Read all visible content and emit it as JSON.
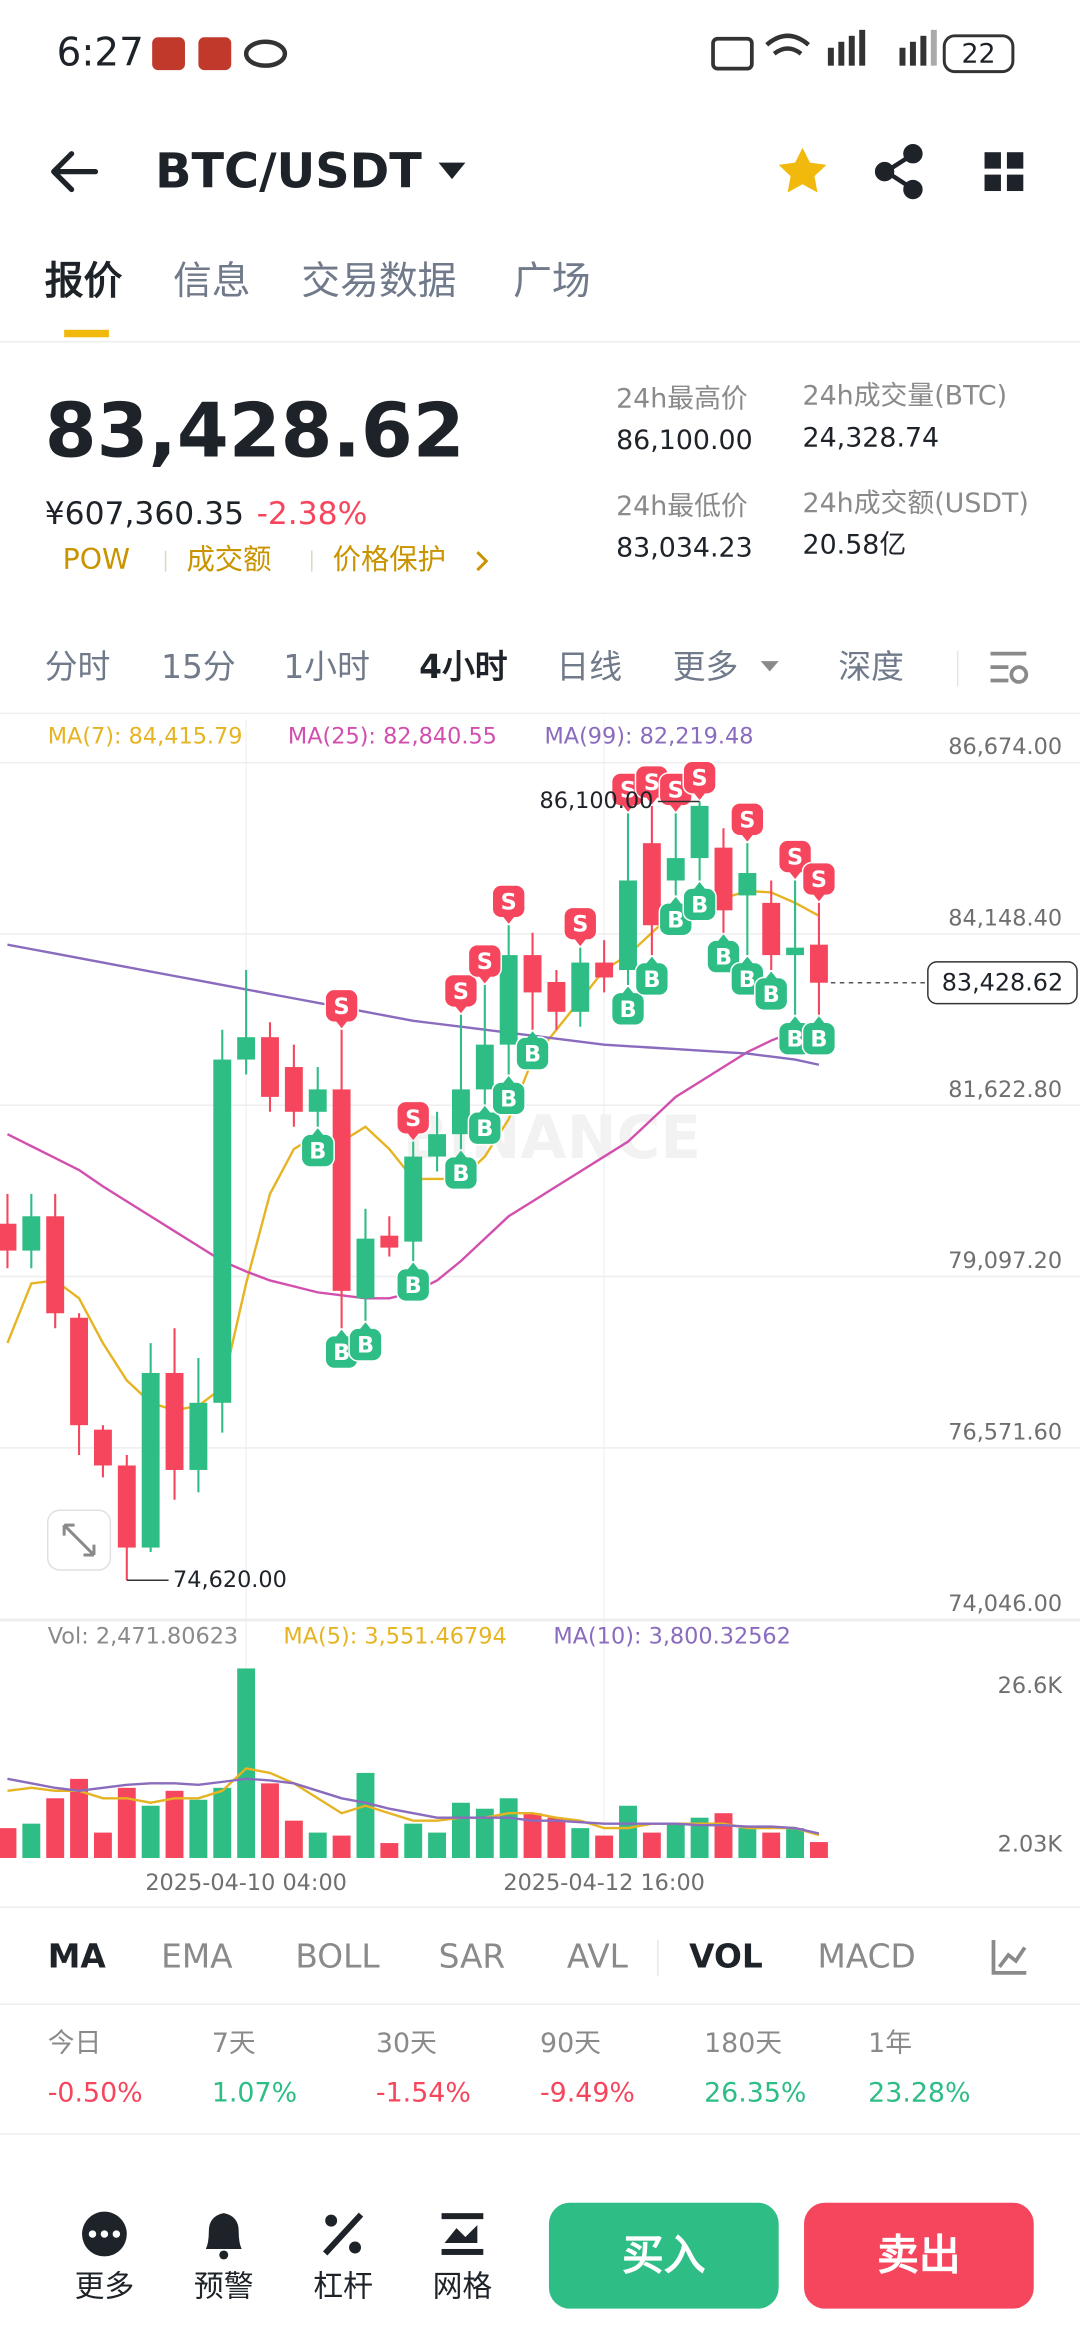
{
  "status_bar": {
    "time": "6:27",
    "battery": "22"
  },
  "header": {
    "title": "BTC/USDT"
  },
  "tabs": [
    "报价",
    "信息",
    "交易数据",
    "广场"
  ],
  "ticker": {
    "price": "83,428.62",
    "fiat": "¥607,360.35",
    "change": "-2.38%",
    "tags": [
      "POW",
      "成交额",
      "价格保护"
    ]
  },
  "stats": [
    {
      "label": "24h最高价",
      "value": "86,100.00"
    },
    {
      "label": "24h成交量(BTC)",
      "value": "24,328.74"
    },
    {
      "label": "24h最低价",
      "value": "83,034.23"
    },
    {
      "label": "24h成交额(USDT)",
      "value": "20.58亿"
    }
  ],
  "intervals": [
    "分时",
    "15分",
    "1小时",
    "4小时",
    "日线",
    "更多",
    "深度"
  ],
  "chart_data": {
    "type": "candlestick",
    "watermark": "BINANCE",
    "up_color": "#2ebd85",
    "down_color": "#f6465d",
    "categories": [
      null,
      null,
      null,
      null,
      null,
      null,
      null,
      null,
      null,
      null,
      "2025-04-10 04:00",
      null,
      null,
      null,
      null,
      null,
      null,
      null,
      null,
      null,
      null,
      null,
      null,
      null,
      null,
      "2025-04-12 16:00",
      null,
      null,
      null,
      null,
      null,
      null,
      null,
      null,
      null
    ],
    "candles": [
      {
        "open": 79876,
        "high": 80316,
        "low": 79220,
        "close": 79480
      },
      {
        "open": 79480,
        "high": 80316,
        "low": 79220,
        "close": 79986
      },
      {
        "open": 79986,
        "high": 80316,
        "low": 78336,
        "close": 78556
      },
      {
        "open": 78490,
        "high": 78556,
        "low": 76466,
        "close": 76906
      },
      {
        "open": 76840,
        "high": 76906,
        "low": 76136,
        "close": 76312
      },
      {
        "open": 76312,
        "high": 76466,
        "low": 74620,
        "close": 75102
      },
      {
        "open": 75102,
        "high": 78116,
        "low": 75036,
        "close": 77676
      },
      {
        "open": 77676,
        "high": 78336,
        "low": 75806,
        "close": 76246
      },
      {
        "open": 76246,
        "high": 77896,
        "low": 75916,
        "close": 77236
      },
      {
        "open": 77236,
        "high": 82736,
        "low": 76796,
        "close": 82296
      },
      {
        "open": 82296,
        "high": 83616,
        "low": 82076,
        "close": 82626
      },
      {
        "open": 82626,
        "high": 82846,
        "low": 81526,
        "close": 81746
      },
      {
        "open": 82186,
        "high": 82516,
        "low": 81306,
        "close": 81526
      },
      {
        "open": 81526,
        "high": 82186,
        "low": 81306,
        "close": 81856,
        "signals": [
          "B"
        ]
      },
      {
        "open": 81856,
        "high": 82736,
        "low": 78336,
        "close": 78886,
        "signals": [
          "S",
          "B"
        ]
      },
      {
        "open": 78776,
        "high": 80096,
        "low": 78446,
        "close": 79656,
        "signals": [
          "B"
        ]
      },
      {
        "open": 79700,
        "high": 79986,
        "low": 79392,
        "close": 79524
      },
      {
        "open": 79612,
        "high": 81086,
        "low": 79326,
        "close": 80866,
        "signals": [
          "S",
          "B"
        ]
      },
      {
        "open": 80866,
        "high": 81526,
        "low": 80646,
        "close": 81196
      },
      {
        "open": 81196,
        "high": 82956,
        "low": 80976,
        "close": 81856,
        "signals": [
          "S",
          "B"
        ]
      },
      {
        "open": 81856,
        "high": 83396,
        "low": 81636,
        "close": 82516,
        "signals": [
          "S",
          "B"
        ]
      },
      {
        "open": 82516,
        "high": 84276,
        "low": 82076,
        "close": 83836,
        "signals": [
          "S",
          "B"
        ]
      },
      {
        "open": 83836,
        "high": 84166,
        "low": 82736,
        "close": 83286,
        "signals": [
          "B"
        ]
      },
      {
        "open": 83440,
        "high": 83616,
        "low": 82736,
        "close": 83000
      },
      {
        "open": 83000,
        "high": 83946,
        "low": 82780,
        "close": 83726,
        "signals": [
          "S"
        ]
      },
      {
        "open": 83726,
        "high": 84056,
        "low": 83286,
        "close": 83506
      },
      {
        "open": 83616,
        "high": 85926,
        "low": 83396,
        "close": 84936,
        "signals": [
          "S",
          "B"
        ]
      },
      {
        "open": 85486,
        "high": 86036,
        "low": 83836,
        "close": 84276,
        "signals": [
          "S",
          "B"
        ]
      },
      {
        "open": 84936,
        "high": 85926,
        "low": 84716,
        "close": 85266,
        "signals": [
          "S",
          "B"
        ]
      },
      {
        "open": 85266,
        "high": 86100,
        "low": 84936,
        "close": 86036,
        "signals": [
          "S",
          "B"
        ]
      },
      {
        "open": 85420,
        "high": 85706,
        "low": 84166,
        "close": 84496,
        "signals": [
          "B"
        ]
      },
      {
        "open": 84716,
        "high": 85486,
        "low": 83836,
        "close": 85046,
        "signals": [
          "S",
          "B"
        ]
      },
      {
        "open": 84606,
        "high": 84936,
        "low": 83616,
        "close": 83836,
        "signals": [
          "B"
        ]
      },
      {
        "open": 83836,
        "high": 84936,
        "low": 82956,
        "close": 83946,
        "signals": [
          "S",
          "B"
        ]
      },
      {
        "open": 83990,
        "high": 84606,
        "low": 82956,
        "close": 83428.62,
        "signals": [
          "S",
          "B"
        ]
      }
    ],
    "series": [
      {
        "name": "MA(7): 84,415.79",
        "color": "#e6b422",
        "values": [
          78116,
          78996,
          79040,
          78776,
          78116,
          77566,
          77236,
          77126,
          77192,
          77456,
          78996,
          80316,
          80976,
          81196,
          81086,
          81306,
          80976,
          80536,
          80536,
          80536,
          80866,
          81416,
          82296,
          82736,
          83176,
          83616,
          83836,
          84166,
          84496,
          84606,
          84672,
          84782,
          84760,
          84606,
          84415.79
        ]
      },
      {
        "name": "MA(25): 82,840.55",
        "color": "#d24fae",
        "values": [
          81196,
          81020,
          80844,
          80668,
          80426,
          80206,
          79986,
          79766,
          79546,
          79326,
          79172,
          79040,
          78952,
          78864,
          78820,
          78776,
          78776,
          78864,
          79040,
          79326,
          79656,
          79986,
          80206,
          80426,
          80646,
          80866,
          81086,
          81416,
          81746,
          81966,
          82186,
          82406,
          82576,
          82716,
          82840.55
        ]
      },
      {
        "name": "MA(99): 82,219.48",
        "color": "#8a6bbe",
        "values": [
          83990,
          83924,
          83858,
          83792,
          83726,
          83660,
          83594,
          83528,
          83462,
          83396,
          83330,
          83264,
          83198,
          83132,
          83066,
          83000,
          82934,
          82868,
          82824,
          82780,
          82736,
          82692,
          82648,
          82604,
          82560,
          82516,
          82494,
          82472,
          82450,
          82428,
          82406,
          82384,
          82340,
          82296,
          82219.48
        ]
      }
    ],
    "ylim": [
      74046,
      87312
    ],
    "yticks": [
      {
        "value": 74046,
        "label": "74,046.00"
      },
      {
        "value": 76571.6,
        "label": "76,571.60"
      },
      {
        "value": 79097.2,
        "label": "79,097.20"
      },
      {
        "value": 81622.8,
        "label": "81,622.80"
      },
      {
        "value": 84148.4,
        "label": "84,148.40"
      },
      {
        "value": 86674,
        "label": "86,674.00"
      }
    ],
    "grid": true,
    "current": {
      "value": 83428.62,
      "label": "83,428.62"
    },
    "annotations": [
      {
        "value": 86100,
        "label": "86,100.00"
      },
      {
        "value": 74620,
        "label": "74,620.00"
      }
    ],
    "volume": {
      "name": "Vol: 2,471.80623",
      "values": [
        4636,
        5331,
        9272,
        12285,
        3941,
        10895,
        8113,
        10431,
        9040,
        10895,
        29439,
        11590,
        5795,
        3941,
        3477,
        13213,
        2318,
        5331,
        3941,
        8577,
        7649,
        9272,
        6954,
        6259,
        4636,
        3477,
        8113,
        3941,
        5331,
        6259,
        6954,
        4636,
        3941,
        4636,
        2471.80623
      ],
      "ylim": [
        0,
        35930
      ],
      "yticks": [
        {
          "value": 2030,
          "label": "2.03K"
        },
        {
          "value": 26600,
          "label": "26.6K"
        }
      ],
      "series": [
        {
          "name": "MA(5): 3,551.46794",
          "color": "#e6b422",
          "values": [
            10430,
            10890,
            10430,
            10430,
            9270,
            9270,
            8580,
            9270,
            9270,
            10430,
            13910,
            13210,
            11590,
            9270,
            6950,
            8110,
            6950,
            5800,
            5800,
            6260,
            6260,
            6950,
            6950,
            6260,
            5800,
            4640,
            4640,
            5330,
            5330,
            5330,
            5330,
            4640,
            4640,
            4640,
            3551.46794
          ]
        },
        {
          "name": "MA(10): 3,800.32562",
          "color": "#8a6bbe",
          "values": [
            12290,
            11590,
            10890,
            10430,
            10890,
            11360,
            11590,
            11590,
            11360,
            11820,
            12290,
            12050,
            11590,
            10430,
            9270,
            8580,
            7650,
            6950,
            6260,
            6260,
            6260,
            6260,
            5800,
            5800,
            5560,
            5330,
            5330,
            5330,
            5330,
            5100,
            5100,
            4870,
            4870,
            4640,
            3800.32562
          ]
        }
      ]
    }
  },
  "indicators": [
    "MA",
    "EMA",
    "BOLL",
    "SAR",
    "AVL",
    "VOL",
    "MACD"
  ],
  "performance": [
    {
      "period": "今日",
      "change": "-0.50%"
    },
    {
      "period": "7天",
      "change": "1.07%"
    },
    {
      "period": "30天",
      "change": "-1.54%"
    },
    {
      "period": "90天",
      "change": "-9.49%"
    },
    {
      "period": "180天",
      "change": "26.35%"
    },
    {
      "period": "1年",
      "change": "23.28%"
    }
  ],
  "actions": [
    "更多",
    "预警",
    "杠杆",
    "网格"
  ],
  "buy": "买入",
  "sell": "卖出"
}
